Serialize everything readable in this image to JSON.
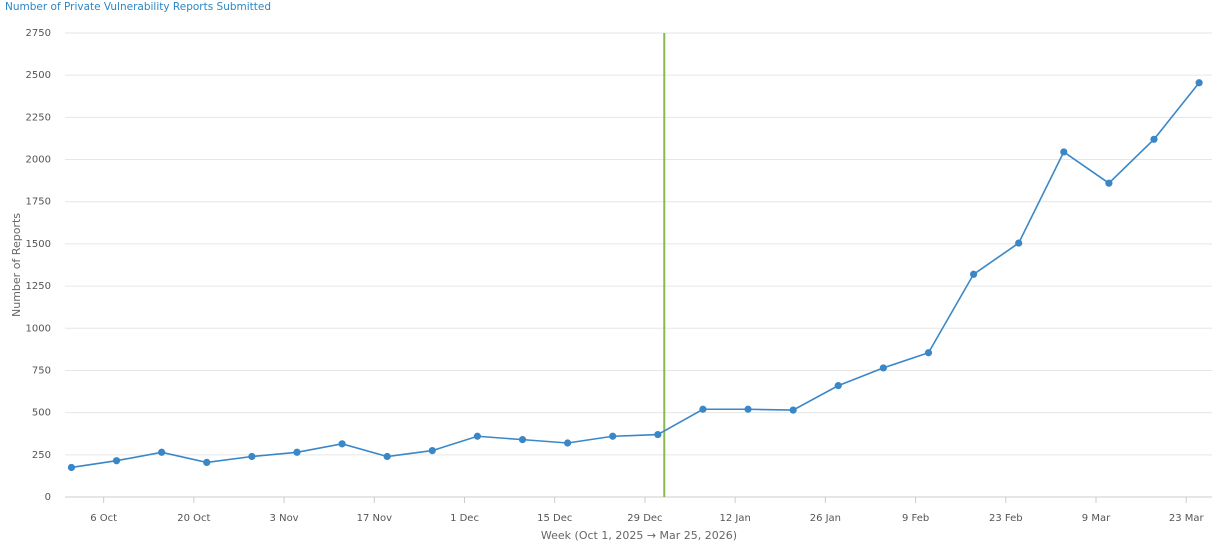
{
  "chart_data": {
    "type": "line",
    "title": "Number of Private Vulnerability Reports Submitted",
    "x_label": "Week (Oct 1, 2025 → Mar 25, 2026)",
    "y_label": "Number of Reports",
    "x": [
      "2025-10-01",
      "2025-10-08",
      "2025-10-15",
      "2025-10-22",
      "2025-10-29",
      "2025-11-05",
      "2025-11-12",
      "2025-11-19",
      "2025-11-26",
      "2025-12-03",
      "2025-12-10",
      "2025-12-17",
      "2025-12-24",
      "2025-12-31",
      "2026-01-07",
      "2026-01-14",
      "2026-01-21",
      "2026-01-28",
      "2026-02-04",
      "2026-02-11",
      "2026-02-18",
      "2026-02-25",
      "2026-03-04",
      "2026-03-11",
      "2026-03-18",
      "2026-03-25"
    ],
    "series": [
      {
        "name": "Reports",
        "color": "#3a87c8",
        "values": [
          175,
          215,
          265,
          205,
          240,
          265,
          315,
          240,
          275,
          360,
          340,
          320,
          360,
          370,
          520,
          520,
          515,
          660,
          765,
          855,
          1320,
          1505,
          2045,
          1860,
          2120,
          2455
        ]
      }
    ],
    "marker_x": "2026-01-01",
    "marker_color": "#8ab84a",
    "xlim": [
      "2025-09-30",
      "2026-03-27"
    ],
    "xticks": [
      {
        "value": "2025-10-06",
        "label": "6 Oct"
      },
      {
        "value": "2025-10-20",
        "label": "20 Oct"
      },
      {
        "value": "2025-11-03",
        "label": "3 Nov"
      },
      {
        "value": "2025-11-17",
        "label": "17 Nov"
      },
      {
        "value": "2025-12-01",
        "label": "1 Dec"
      },
      {
        "value": "2025-12-15",
        "label": "15 Dec"
      },
      {
        "value": "2025-12-29",
        "label": "29 Dec"
      },
      {
        "value": "2026-01-12",
        "label": "12 Jan"
      },
      {
        "value": "2026-01-26",
        "label": "26 Jan"
      },
      {
        "value": "2026-02-09",
        "label": "9 Feb"
      },
      {
        "value": "2026-02-23",
        "label": "23 Feb"
      },
      {
        "value": "2026-03-09",
        "label": "9 Mar"
      },
      {
        "value": "2026-03-23",
        "label": "23 Mar"
      }
    ],
    "ylim": [
      0,
      2750
    ],
    "yticks": [
      0,
      250,
      500,
      750,
      1000,
      1250,
      1500,
      1750,
      2000,
      2250,
      2500,
      2750
    ],
    "grid": true
  }
}
